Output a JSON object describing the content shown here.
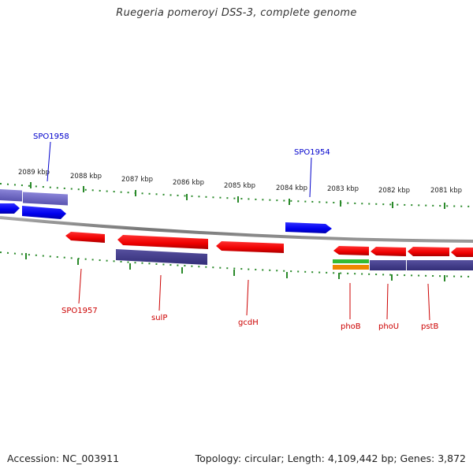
{
  "title": "Ruegeria pomeroyi DSS-3, complete genome",
  "accession_label": "Accession: NC_003911",
  "summary_label": "Topology: circular; Length: 4,109,442 bp; Genes: 3,872",
  "ruler_labels": [
    "2089 kbp",
    "2088 kbp",
    "2087 kbp",
    "2086 kbp",
    "2085 kbp",
    "2084 kbp",
    "2083 kbp",
    "2082 kbp",
    "2081 kbp"
  ],
  "genes_top": [
    {
      "label": "SPO1958",
      "color": "#0000cc"
    },
    {
      "label": "SPO1954",
      "color": "#0000cc"
    }
  ],
  "genes_bottom": [
    {
      "label": "SPO1957",
      "color": "#cc0000"
    },
    {
      "label": "sulP",
      "color": "#cc0000"
    },
    {
      "label": "gcdH",
      "color": "#cc0000"
    },
    {
      "label": "phoB",
      "color": "#cc0000"
    },
    {
      "label": "phoU",
      "color": "#cc0000"
    },
    {
      "label": "pstB",
      "color": "#cc0000"
    }
  ],
  "colors": {
    "forward_gene": "#0000ee",
    "reverse_gene": "#ee0000",
    "cds_bar": "#3f3a8c",
    "backbone": "#888888",
    "ticks": "#2a8a2a",
    "green_feature": "#33bb33",
    "orange_feature": "#ee8800"
  }
}
